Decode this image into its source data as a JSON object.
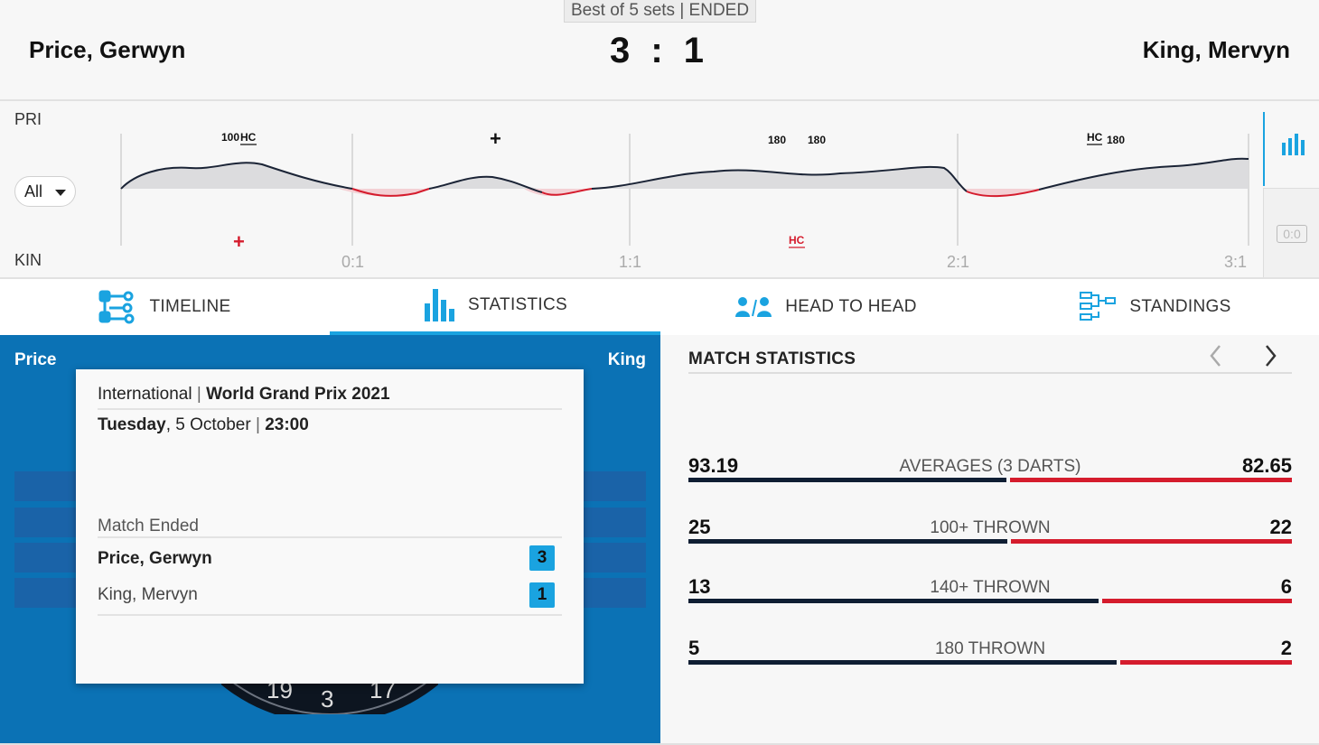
{
  "match": {
    "format": "Best of 5 sets | ENDED",
    "home_name": "Price, Gerwyn",
    "away_name": "King, Mervyn",
    "score": "3 : 1"
  },
  "momentum": {
    "home_label": "PRI",
    "away_label": "KIN",
    "filter_value": "All",
    "set_marks": [
      "0:1",
      "1:1",
      "2:1",
      "3:1"
    ],
    "home_events": [
      "100",
      "HC",
      "+",
      "180",
      "180",
      "HC",
      "180"
    ],
    "away_events": [
      "+",
      "HC"
    ],
    "score_toggle": "0:0",
    "colors": {
      "home_fill": "#dcdcde",
      "away_line": "#d51c2d",
      "line": "#1b2436"
    }
  },
  "tabs": [
    {
      "label": "TIMELINE",
      "icon": "timeline-icon"
    },
    {
      "label": "STATISTICS",
      "icon": "statistics-icon",
      "active": true
    },
    {
      "label": "HEAD TO HEAD",
      "icon": "head-to-head-icon"
    },
    {
      "label": "STANDINGS",
      "icon": "standings-icon"
    }
  ],
  "left_panel": {
    "home_short": "Price",
    "away_short": "King",
    "board_numbers": [
      "19",
      "3",
      "17"
    ]
  },
  "info_card": {
    "category": "International",
    "tournament": "World Grand Prix 2021",
    "day": "Tuesday",
    "date": "5 October",
    "time": "23:00",
    "status": "Match Ended",
    "home_name": "Price, Gerwyn",
    "home_sets": "3",
    "away_name": "King, Mervyn",
    "away_sets": "1"
  },
  "match_statistics": {
    "title": "MATCH STATISTICS",
    "rows": [
      {
        "label": "AVERAGES (3 DARTS)",
        "home": "93.19",
        "away": "82.65",
        "home_val": 93.19,
        "away_val": 82.65
      },
      {
        "label": "100+ THROWN",
        "home": "25",
        "away": "22",
        "home_val": 25,
        "away_val": 22
      },
      {
        "label": "140+ THROWN",
        "home": "13",
        "away": "6",
        "home_val": 13,
        "away_val": 6
      },
      {
        "label": "180 THROWN",
        "home": "5",
        "away": "2",
        "home_val": 5,
        "away_val": 2
      }
    ]
  }
}
